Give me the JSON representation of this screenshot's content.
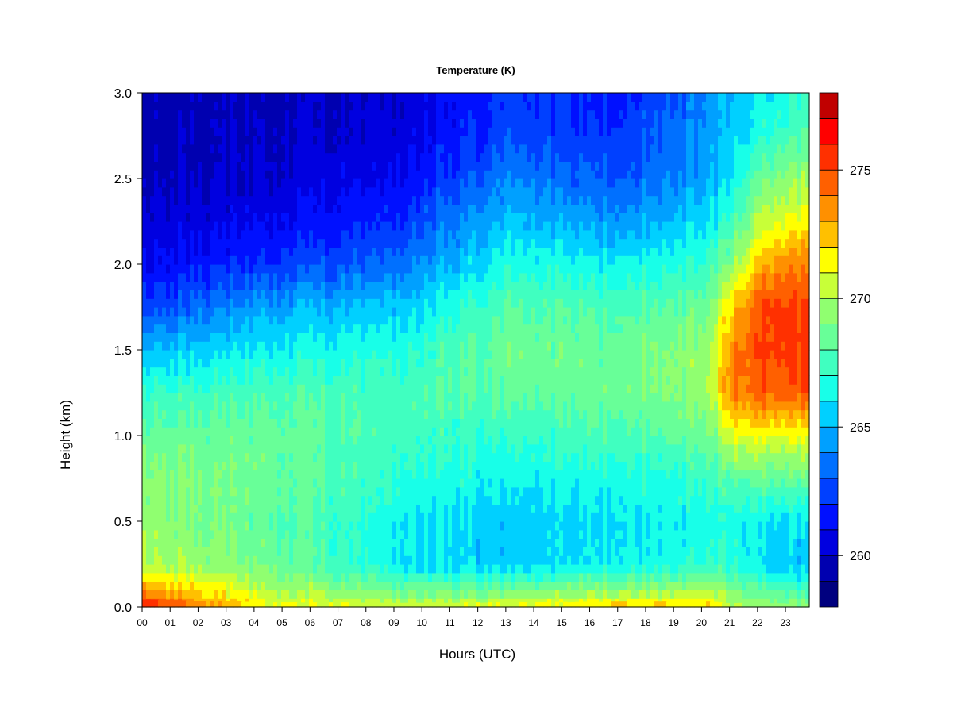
{
  "chart_data": {
    "type": "heatmap",
    "title": "Temperature (K)",
    "xlabel": "Hours (UTC)",
    "ylabel": "Height (km)",
    "x_ticks": [
      "00",
      "01",
      "02",
      "03",
      "04",
      "05",
      "06",
      "07",
      "08",
      "09",
      "10",
      "11",
      "12",
      "13",
      "14",
      "15",
      "16",
      "17",
      "18",
      "19",
      "20",
      "21",
      "22",
      "23"
    ],
    "xlim": [
      0,
      23.85
    ],
    "y_ticks": [
      "0.0",
      "0.5",
      "1.0",
      "1.5",
      "2.0",
      "2.5",
      "3.0"
    ],
    "ylim": [
      0,
      3.0
    ],
    "colorbar": {
      "min": 258,
      "max": 278,
      "step": 1,
      "ticks": [
        "260",
        "265",
        "270",
        "275"
      ],
      "colors": [
        "#00007F",
        "#0000B0",
        "#0000E0",
        "#0010FF",
        "#0040FF",
        "#0070FF",
        "#00A0FF",
        "#00D0FF",
        "#18FFE8",
        "#40FFC0",
        "#68FF98",
        "#90FF70",
        "#C8FF38",
        "#FFFF00",
        "#FFC000",
        "#FF9000",
        "#FF6000",
        "#FF3000",
        "#FF0000",
        "#C00000",
        "#800000"
      ]
    },
    "profiles": [
      {
        "hour": 0,
        "values": [
          275.5,
          270.2,
          269.6,
          269.4,
          268.5,
          267.2,
          265.0,
          262.5,
          261.0,
          260.3,
          259.8,
          259.6,
          259.5
        ]
      },
      {
        "hour": 4.5,
        "values": [
          271.0,
          268.8,
          268.3,
          268.6,
          268.5,
          267.8,
          266.2,
          264.6,
          262.2,
          260.9,
          260.2,
          259.9,
          259.8
        ]
      },
      {
        "hour": 9,
        "values": [
          270.5,
          266.2,
          266.5,
          267.0,
          267.6,
          267.6,
          266.8,
          265.3,
          263.4,
          262.1,
          261.0,
          260.4,
          260.2
        ]
      },
      {
        "hour": 13,
        "values": [
          270.8,
          265.3,
          265.2,
          266.2,
          267.0,
          268.2,
          268.6,
          267.9,
          266.6,
          265.2,
          263.8,
          262.6,
          262.2
        ]
      },
      {
        "hour": 17,
        "values": [
          271.8,
          266.2,
          266.0,
          266.5,
          267.8,
          268.6,
          268.6,
          267.7,
          266.3,
          264.3,
          263.0,
          262.2,
          261.5
        ]
      },
      {
        "hour": 20.3,
        "values": [
          271.8,
          267.0,
          266.4,
          267.1,
          268.5,
          269.6,
          269.6,
          268.6,
          267.1,
          265.9,
          264.6,
          264.3,
          264.0
        ]
      },
      {
        "hour": 21,
        "values": [
          270.0,
          267.2,
          266.4,
          268.2,
          271.0,
          273.8,
          273.5,
          272.2,
          269.2,
          267.4,
          266.0,
          265.4,
          265.2
        ]
      },
      {
        "hour": 22.3,
        "values": [
          269.6,
          265.6,
          266.0,
          268.4,
          271.2,
          274.6,
          275.3,
          275.4,
          273.2,
          270.7,
          268.8,
          267.0,
          266.2
        ]
      },
      {
        "hour": 23.85,
        "values": [
          269.3,
          265.2,
          266.0,
          268.4,
          271.2,
          274.8,
          275.6,
          275.2,
          273.8,
          271.6,
          269.8,
          268.0,
          267.2
        ]
      }
    ],
    "profile_heights_km": [
      0.0,
      0.25,
      0.5,
      0.75,
      1.0,
      1.25,
      1.5,
      1.75,
      2.0,
      2.25,
      2.5,
      2.75,
      3.0
    ]
  }
}
